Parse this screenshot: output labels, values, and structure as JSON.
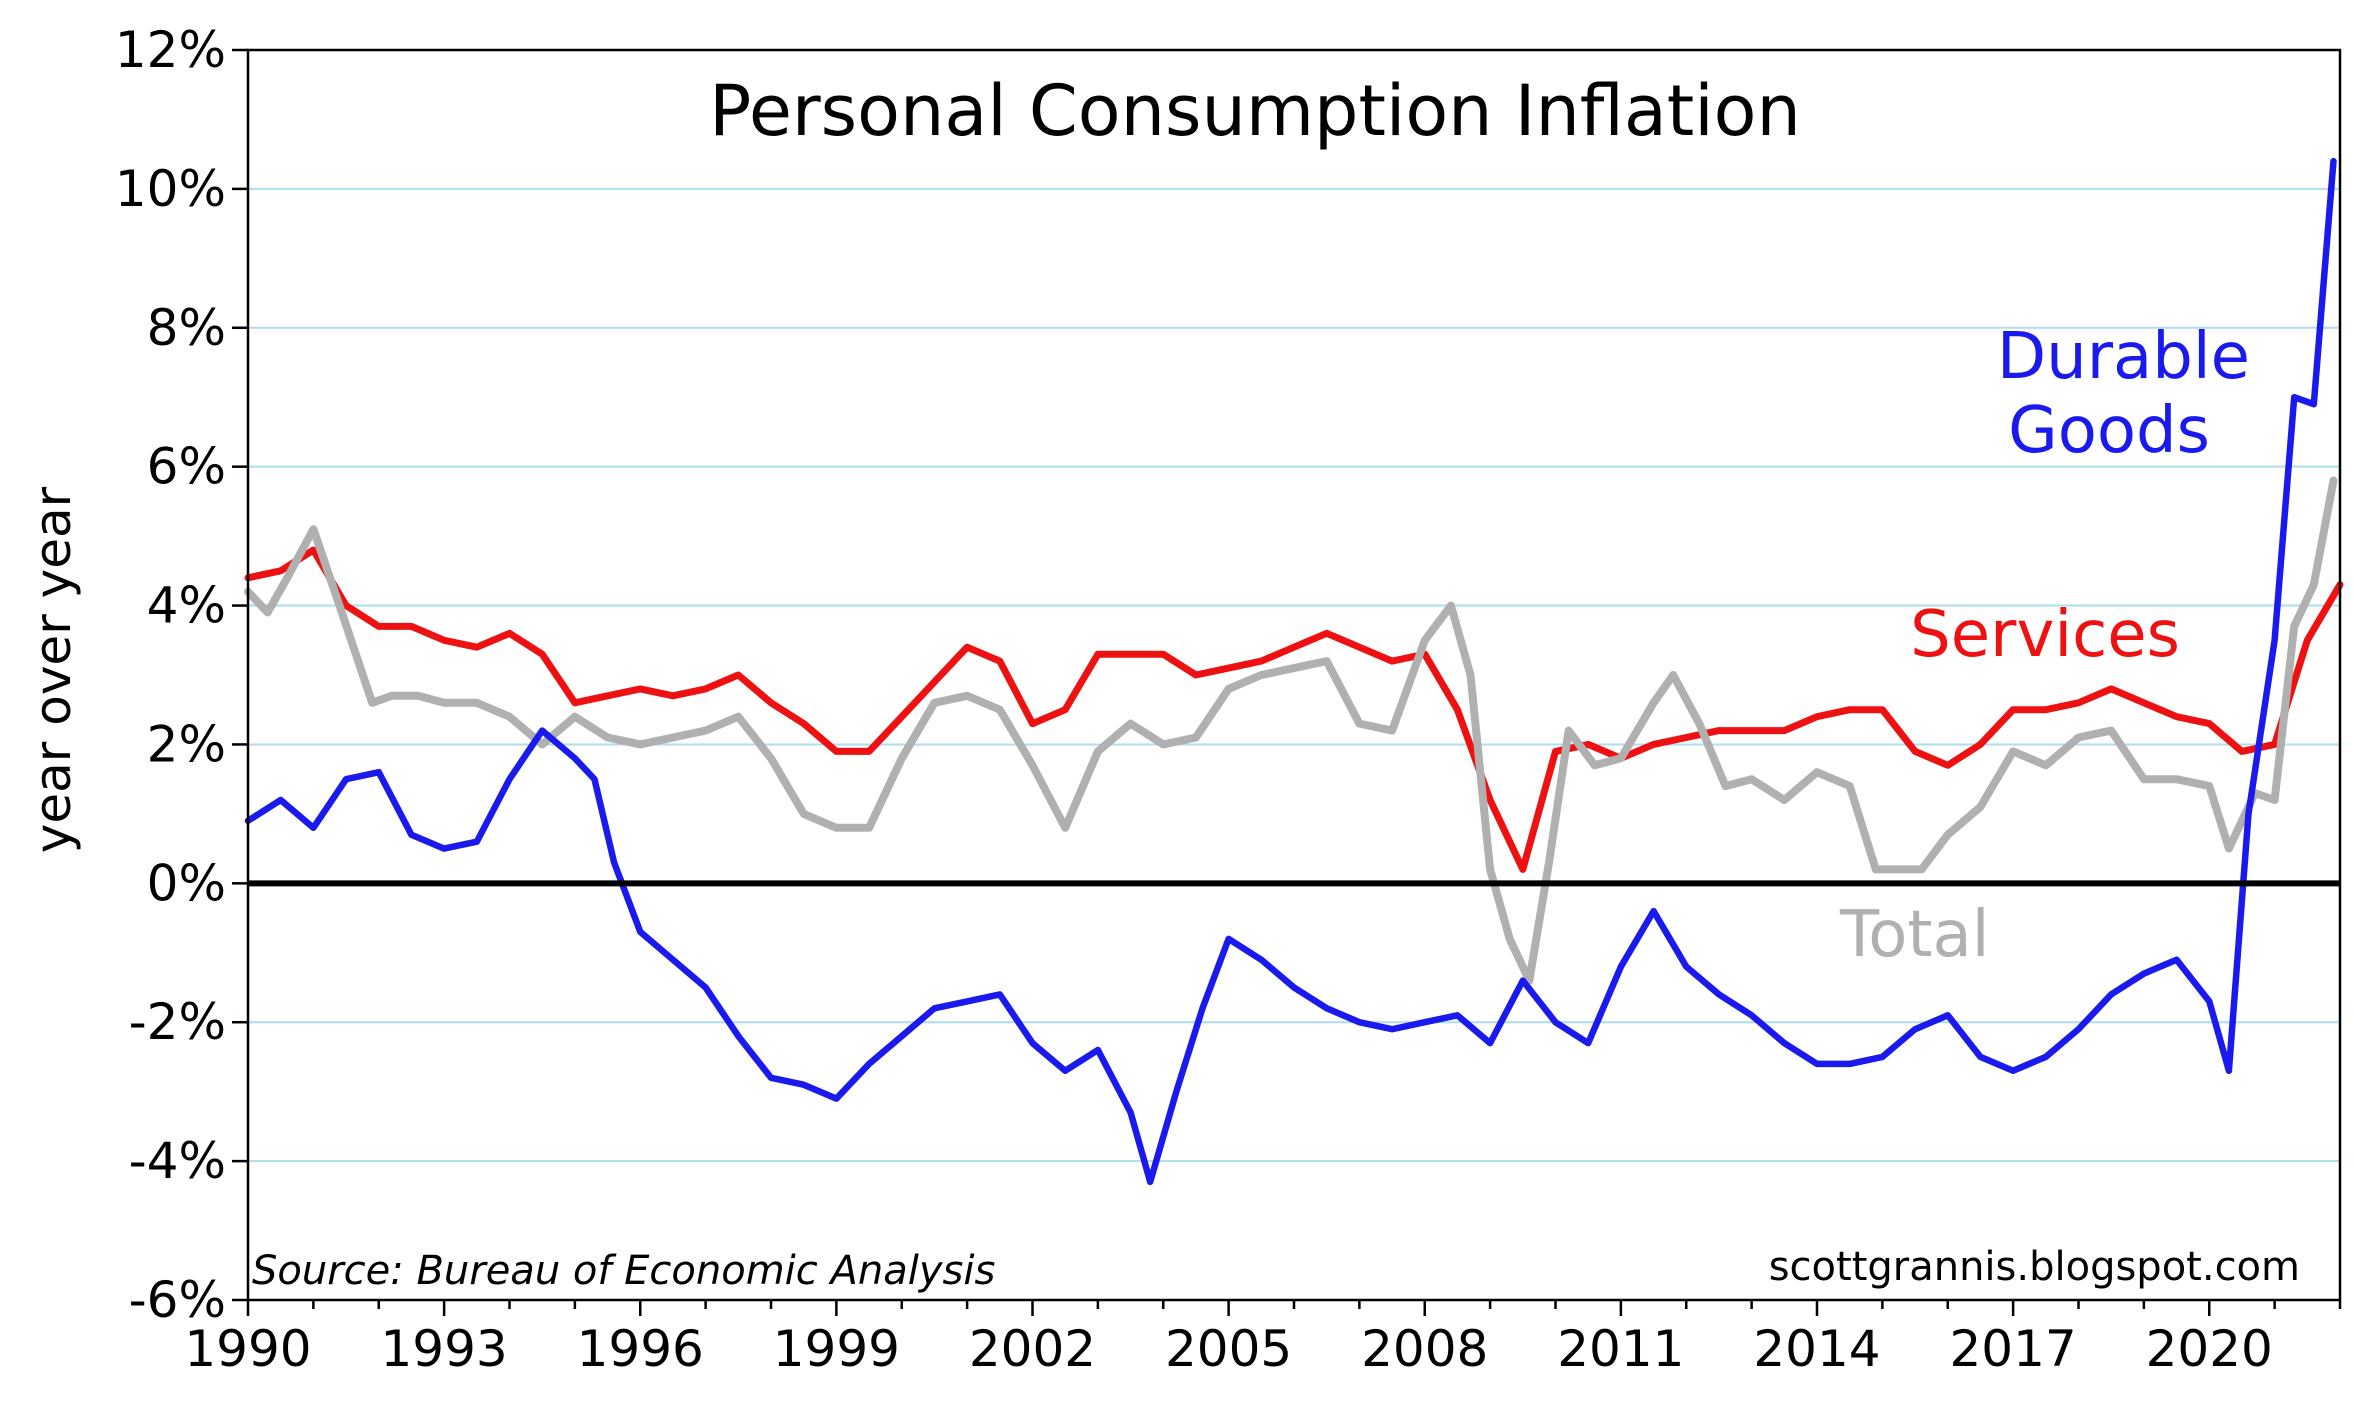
{
  "chart_data": {
    "type": "line",
    "title": "Personal Consumption Inflation",
    "ylabel": "year over year",
    "xlabel": "",
    "xlim": [
      1990,
      2022.0
    ],
    "ylim": [
      -6,
      12
    ],
    "grid": true,
    "x_ticks": [
      "1990",
      "1993",
      "1996",
      "1999",
      "2002",
      "2005",
      "2008",
      "2011",
      "2014",
      "2017",
      "2020"
    ],
    "y_ticks": [
      "12%",
      "10%",
      "8%",
      "6%",
      "4%",
      "2%",
      "0%",
      "-2%",
      "-4%",
      "-6%"
    ],
    "source": "Source:  Bureau of Economic Analysis",
    "site": "scottgrannis.blogspot.com",
    "series": [
      {
        "name": "Services",
        "label_text": "Services",
        "color": "#ee1111",
        "x": [
          1990.0,
          1990.5,
          1991.0,
          1991.5,
          1992.0,
          1992.5,
          1993.0,
          1993.5,
          1994.0,
          1994.5,
          1995.0,
          1995.5,
          1996.0,
          1996.5,
          1997.0,
          1997.5,
          1998.0,
          1998.5,
          1999.0,
          1999.5,
          2000.0,
          2000.5,
          2001.0,
          2001.5,
          2002.0,
          2002.5,
          2003.0,
          2003.5,
          2004.0,
          2004.5,
          2005.0,
          2005.5,
          2006.0,
          2006.5,
          2007.0,
          2007.5,
          2008.0,
          2008.5,
          2009.0,
          2009.5,
          2010.0,
          2010.5,
          2011.0,
          2011.5,
          2012.0,
          2012.5,
          2013.0,
          2013.5,
          2014.0,
          2014.5,
          2015.0,
          2015.5,
          2016.0,
          2016.5,
          2017.0,
          2017.5,
          2018.0,
          2018.5,
          2019.0,
          2019.5,
          2020.0,
          2020.5,
          2021.0,
          2021.5,
          2022.0
        ],
        "values": [
          4.4,
          4.5,
          4.8,
          4.0,
          3.7,
          3.7,
          3.5,
          3.4,
          3.6,
          3.3,
          2.6,
          2.7,
          2.8,
          2.7,
          2.8,
          3.0,
          2.6,
          2.3,
          1.9,
          1.9,
          2.4,
          2.9,
          3.4,
          3.2,
          2.3,
          2.5,
          3.3,
          3.3,
          3.3,
          3.0,
          3.1,
          3.2,
          3.4,
          3.6,
          3.4,
          3.2,
          3.3,
          2.5,
          1.2,
          0.2,
          1.9,
          2.0,
          1.8,
          2.0,
          2.1,
          2.2,
          2.2,
          2.2,
          2.4,
          2.5,
          2.5,
          1.9,
          1.7,
          2.0,
          2.5,
          2.5,
          2.6,
          2.8,
          2.6,
          2.4,
          2.3,
          1.9,
          2.0,
          3.5,
          4.3
        ]
      },
      {
        "name": "Total",
        "label_text": "Total",
        "color": "#b0b0b0",
        "x": [
          1990.0,
          1990.3,
          1990.6,
          1991.0,
          1991.4,
          1991.9,
          1992.2,
          1992.6,
          1993.0,
          1993.5,
          1994.0,
          1994.5,
          1995.0,
          1995.5,
          1996.0,
          1996.5,
          1997.0,
          1997.5,
          1998.0,
          1998.5,
          1999.0,
          1999.5,
          2000.0,
          2000.5,
          2001.0,
          2001.5,
          2002.0,
          2002.5,
          2003.0,
          2003.5,
          2004.0,
          2004.5,
          2005.0,
          2005.5,
          2006.0,
          2006.5,
          2007.0,
          2007.5,
          2008.0,
          2008.4,
          2008.7,
          2009.0,
          2009.3,
          2009.6,
          2009.9,
          2010.2,
          2010.6,
          2011.0,
          2011.5,
          2011.8,
          2012.2,
          2012.6,
          2013.0,
          2013.5,
          2014.0,
          2014.5,
          2014.9,
          2015.2,
          2015.6,
          2016.0,
          2016.5,
          2017.0,
          2017.5,
          2018.0,
          2018.5,
          2019.0,
          2019.5,
          2020.0,
          2020.3,
          2020.7,
          2021.0,
          2021.3,
          2021.6,
          2021.9
        ],
        "values": [
          4.2,
          3.9,
          4.4,
          5.1,
          4.0,
          2.6,
          2.7,
          2.7,
          2.6,
          2.6,
          2.4,
          2.0,
          2.4,
          2.1,
          2.0,
          2.1,
          2.2,
          2.4,
          1.8,
          1.0,
          0.8,
          0.8,
          1.8,
          2.6,
          2.7,
          2.5,
          1.7,
          0.8,
          1.9,
          2.3,
          2.0,
          2.1,
          2.8,
          3.0,
          3.1,
          3.2,
          2.3,
          2.2,
          3.5,
          4.0,
          3.0,
          0.2,
          -0.8,
          -1.4,
          0.3,
          2.2,
          1.7,
          1.8,
          2.6,
          3.0,
          2.3,
          1.4,
          1.5,
          1.2,
          1.6,
          1.4,
          0.2,
          0.2,
          0.2,
          0.7,
          1.1,
          1.9,
          1.7,
          2.1,
          2.2,
          1.5,
          1.5,
          1.4,
          0.5,
          1.3,
          1.2,
          3.7,
          4.3,
          5.8
        ]
      },
      {
        "name": "Durable Goods",
        "label_text": [
          "Durable",
          "Goods"
        ],
        "color": "#1a1aee",
        "x": [
          1990.0,
          1990.5,
          1991.0,
          1991.5,
          1992.0,
          1992.5,
          1993.0,
          1993.5,
          1994.0,
          1994.5,
          1995.0,
          1995.3,
          1995.6,
          1996.0,
          1996.5,
          1997.0,
          1997.5,
          1998.0,
          1998.5,
          1999.0,
          1999.5,
          2000.0,
          2000.5,
          2001.0,
          2001.5,
          2002.0,
          2002.5,
          2003.0,
          2003.5,
          2003.8,
          2004.2,
          2004.6,
          2005.0,
          2005.5,
          2006.0,
          2006.5,
          2007.0,
          2007.5,
          2008.0,
          2008.5,
          2009.0,
          2009.5,
          2010.0,
          2010.5,
          2011.0,
          2011.5,
          2012.0,
          2012.5,
          2013.0,
          2013.5,
          2014.0,
          2014.5,
          2015.0,
          2015.5,
          2016.0,
          2016.5,
          2017.0,
          2017.5,
          2018.0,
          2018.5,
          2019.0,
          2019.5,
          2020.0,
          2020.3,
          2020.6,
          2021.0,
          2021.3,
          2021.6,
          2021.9
        ],
        "values": [
          0.9,
          1.2,
          0.8,
          1.5,
          1.6,
          0.7,
          0.5,
          0.6,
          1.5,
          2.2,
          1.8,
          1.5,
          0.3,
          -0.7,
          -1.1,
          -1.5,
          -2.2,
          -2.8,
          -2.9,
          -3.1,
          -2.6,
          -2.2,
          -1.8,
          -1.7,
          -1.6,
          -2.3,
          -2.7,
          -2.4,
          -3.3,
          -4.3,
          -3.0,
          -1.8,
          -0.8,
          -1.1,
          -1.5,
          -1.8,
          -2.0,
          -2.1,
          -2.0,
          -1.9,
          -2.3,
          -1.4,
          -2.0,
          -2.3,
          -1.2,
          -0.4,
          -1.2,
          -1.6,
          -1.9,
          -2.3,
          -2.6,
          -2.6,
          -2.5,
          -2.1,
          -1.9,
          -2.5,
          -2.7,
          -2.5,
          -2.1,
          -1.6,
          -1.3,
          -1.1,
          -1.7,
          -2.7,
          1.0,
          3.5,
          7.0,
          6.9,
          10.4
        ]
      }
    ]
  }
}
